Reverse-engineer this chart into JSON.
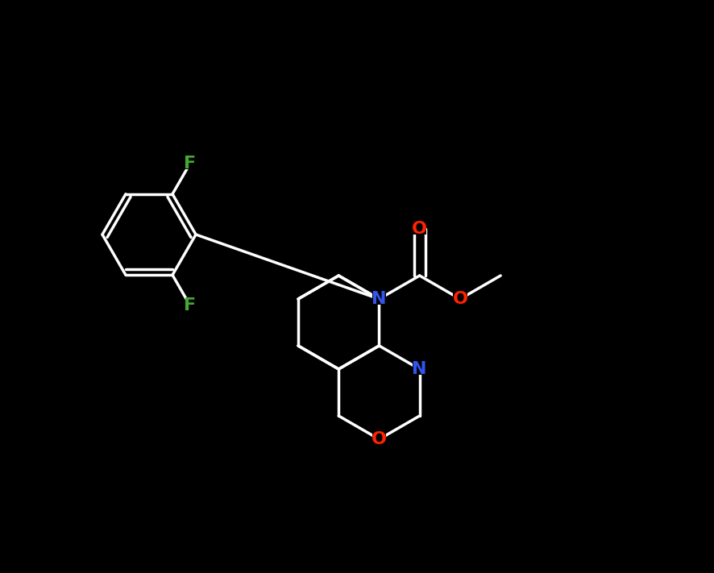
{
  "background_color": "#000000",
  "bond_color": "#ffffff",
  "atom_colors": {
    "N": "#3355ee",
    "O": "#ff2200",
    "F": "#44aa33",
    "C": "#ffffff"
  },
  "font_size": 16,
  "bond_width": 2.5,
  "figsize": [
    8.86,
    7.11
  ],
  "dpi": 100,
  "xlim": [
    0,
    886
  ],
  "ylim": [
    0,
    711
  ]
}
